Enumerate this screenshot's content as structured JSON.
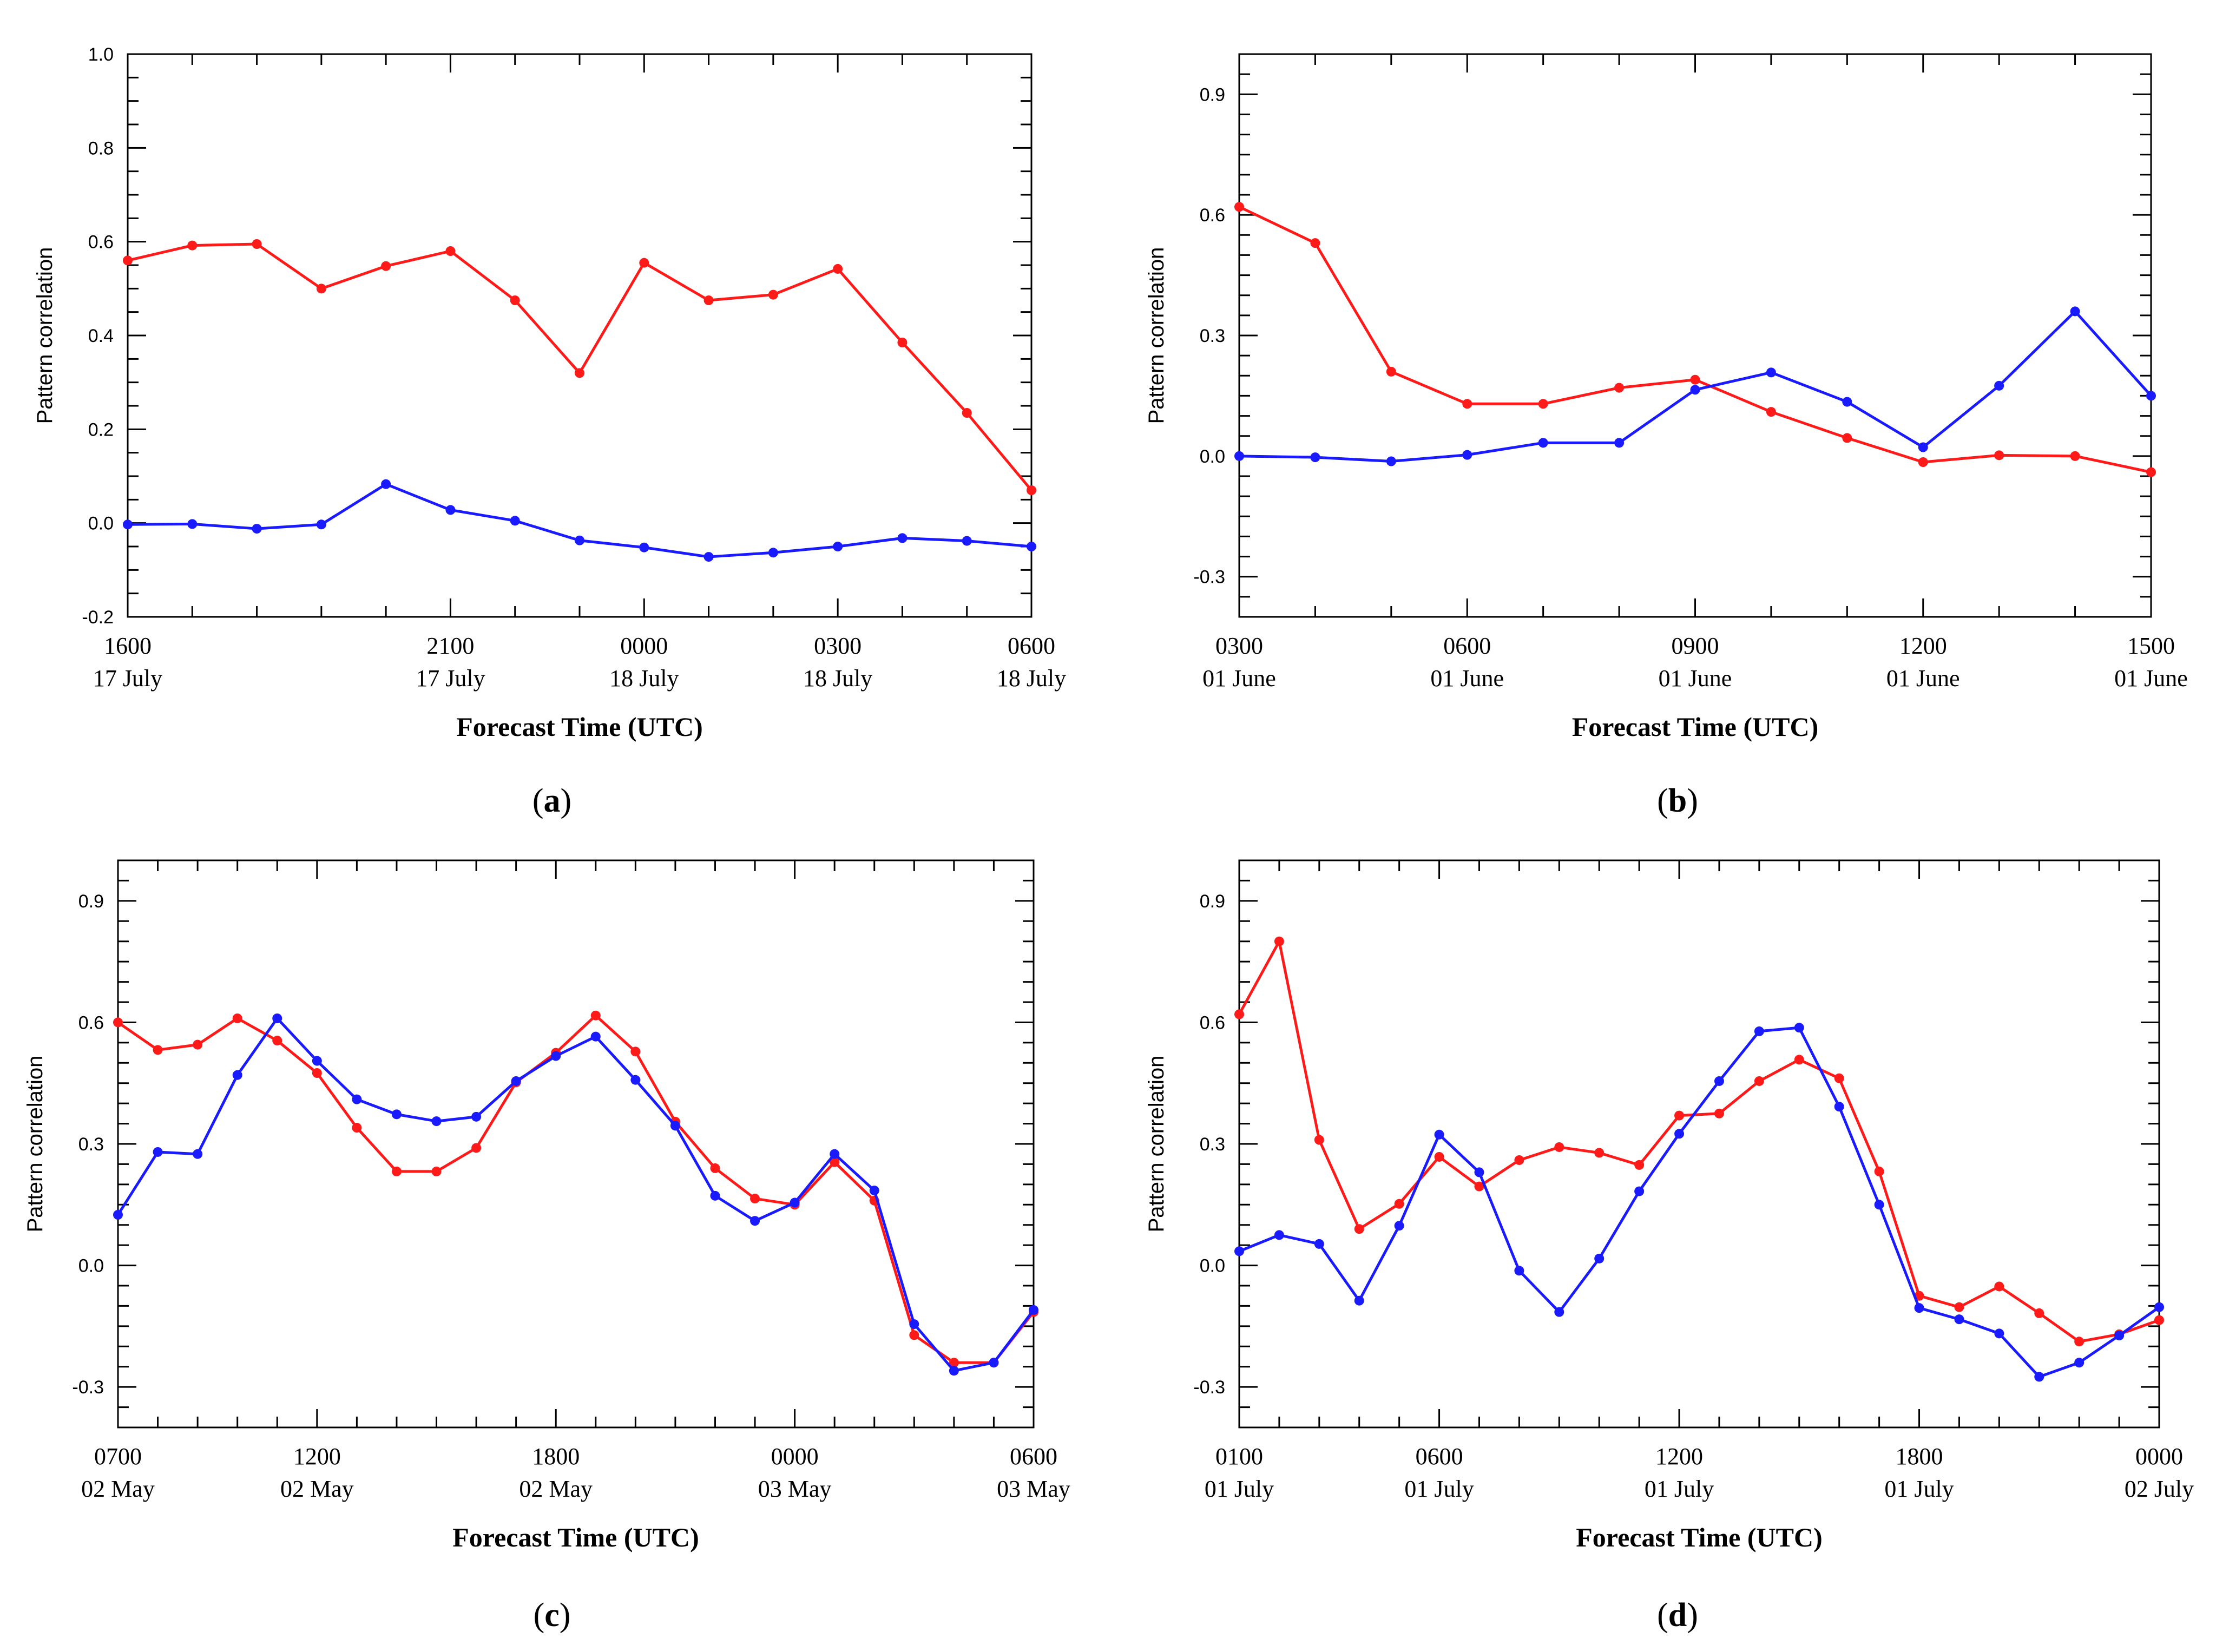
{
  "chart_data": [
    {
      "type": "line",
      "panel": "(a)",
      "panel_letter": "a",
      "ylabel": "Pattern correlation",
      "xlabel": "Forecast Time (UTC)",
      "ylim": [
        -0.2,
        1.0
      ],
      "yticks": [
        -0.2,
        0.0,
        0.2,
        0.4,
        0.6,
        0.8,
        1.0
      ],
      "ytick_labels": [
        "-0.2",
        "0.0",
        "0.2",
        "0.4",
        "0.6",
        "0.8",
        "1.0"
      ],
      "y_minor_step": 0.05,
      "xlim": [
        0,
        14
      ],
      "x_minor_step": 1,
      "xtick_labels": [
        {
          "x": 0,
          "time": "1600",
          "date": "17 July"
        },
        {
          "x": 5,
          "time": "2100",
          "date": "17 July"
        },
        {
          "x": 8,
          "time": "0000",
          "date": "18 July"
        },
        {
          "x": 11,
          "time": "0300",
          "date": "18 July"
        },
        {
          "x": 14,
          "time": "0600",
          "date": "18 July"
        }
      ],
      "series": [
        {
          "name": "red",
          "color": "#ff1a1a",
          "values": [
            0.56,
            0.592,
            0.595,
            0.5,
            0.548,
            0.58,
            0.475,
            0.32,
            0.555,
            0.475,
            0.487,
            0.542,
            0.385,
            0.235,
            0.07
          ]
        },
        {
          "name": "blue",
          "color": "#1a1aff",
          "values": [
            -0.003,
            -0.002,
            -0.012,
            -0.003,
            0.083,
            0.028,
            0.005,
            -0.037,
            -0.052,
            -0.072,
            -0.063,
            -0.05,
            -0.032,
            -0.038,
            -0.05
          ]
        }
      ]
    },
    {
      "type": "line",
      "panel": "(b)",
      "panel_letter": "b",
      "ylabel": "Pattern correlation",
      "xlabel": "Forecast Time (UTC)",
      "ylim": [
        -0.4,
        1.0
      ],
      "yticks": [
        -0.3,
        0.0,
        0.3,
        0.6,
        0.9
      ],
      "ytick_labels": [
        "-0.3",
        "0.0",
        "0.3",
        "0.6",
        "0.9"
      ],
      "y_minor_step": 0.05,
      "xlim": [
        0,
        12
      ],
      "x_minor_step": 1,
      "xtick_labels": [
        {
          "x": 0,
          "time": "0300",
          "date": "01 June"
        },
        {
          "x": 3,
          "time": "0600",
          "date": "01 June"
        },
        {
          "x": 6,
          "time": "0900",
          "date": "01 June"
        },
        {
          "x": 9,
          "time": "1200",
          "date": "01 June"
        },
        {
          "x": 12,
          "time": "1500",
          "date": "01 June"
        }
      ],
      "series": [
        {
          "name": "red",
          "color": "#ff1a1a",
          "values": [
            0.62,
            0.53,
            0.21,
            0.13,
            0.13,
            0.17,
            0.19,
            0.11,
            0.045,
            -0.015,
            0.002,
            0.0,
            -0.04
          ]
        },
        {
          "name": "blue",
          "color": "#1a1aff",
          "values": [
            0.0,
            -0.003,
            -0.013,
            0.003,
            0.033,
            0.033,
            0.165,
            0.208,
            0.135,
            0.022,
            0.175,
            0.36,
            0.15
          ]
        }
      ]
    },
    {
      "type": "line",
      "panel": "(c)",
      "panel_letter": "c",
      "ylabel": "Pattern correlation",
      "xlabel": "Forecast Time (UTC)",
      "ylim": [
        -0.4,
        1.0
      ],
      "yticks": [
        -0.3,
        0.0,
        0.3,
        0.6,
        0.9
      ],
      "ytick_labels": [
        "-0.3",
        "0.0",
        "0.3",
        "0.6",
        "0.9"
      ],
      "y_minor_step": 0.05,
      "xlim": [
        0,
        46
      ],
      "x_minor_step": 2,
      "xtick_labels": [
        {
          "x": 0,
          "time": "0700",
          "date": "02 May"
        },
        {
          "x": 10,
          "time": "1200",
          "date": "02 May"
        },
        {
          "x": 22,
          "time": "1800",
          "date": "02 May"
        },
        {
          "x": 34,
          "time": "0000",
          "date": "03 May"
        },
        {
          "x": 46,
          "time": "0600",
          "date": "03 May"
        }
      ],
      "series": [
        {
          "name": "red",
          "x": [
            0,
            2,
            4,
            6,
            8,
            10,
            12,
            14,
            16,
            18,
            20,
            22,
            24,
            26,
            28,
            30,
            32,
            34,
            36,
            38,
            40,
            42,
            44,
            46
          ],
          "color": "#ff1a1a",
          "values": [
            0.6,
            0.532,
            0.545,
            0.61,
            0.555,
            0.475,
            0.34,
            0.232,
            0.232,
            0.29,
            0.452,
            0.525,
            0.617,
            0.528,
            0.355,
            0.24,
            0.165,
            0.15,
            0.255,
            0.16,
            -0.172,
            -0.24,
            -0.24,
            -0.115
          ]
        },
        {
          "name": "blue",
          "x": [
            0,
            2,
            4,
            6,
            8,
            10,
            12,
            14,
            16,
            18,
            20,
            22,
            24,
            26,
            28,
            30,
            32,
            34,
            36,
            38,
            40,
            42,
            44,
            46
          ],
          "color": "#1a1aff",
          "values": [
            0.125,
            0.28,
            0.275,
            0.47,
            0.61,
            0.505,
            0.41,
            0.373,
            0.356,
            0.367,
            0.455,
            0.517,
            0.565,
            0.458,
            0.345,
            0.172,
            0.11,
            0.155,
            0.275,
            0.185,
            -0.145,
            -0.26,
            -0.24,
            -0.11
          ]
        }
      ]
    },
    {
      "type": "line",
      "panel": "(d)",
      "panel_letter": "d",
      "ylabel": "Pattern correlation",
      "xlabel": "Forecast Time (UTC)",
      "ylim": [
        -0.4,
        1.0
      ],
      "yticks": [
        -0.3,
        0.0,
        0.3,
        0.6,
        0.9
      ],
      "ytick_labels": [
        "-0.3",
        "0.0",
        "0.3",
        "0.6",
        "0.9"
      ],
      "y_minor_step": 0.05,
      "xlim": [
        0,
        23
      ],
      "x_minor_step": 1,
      "xtick_labels": [
        {
          "x": 0,
          "time": "0100",
          "date": "01 July"
        },
        {
          "x": 5,
          "time": "0600",
          "date": "01 July"
        },
        {
          "x": 11,
          "time": "1200",
          "date": "01 July"
        },
        {
          "x": 17,
          "time": "1800",
          "date": "01 July"
        },
        {
          "x": 23,
          "time": "0000",
          "date": "02 July"
        }
      ],
      "series": [
        {
          "name": "red",
          "color": "#ff1a1a",
          "values": [
            0.62,
            0.8,
            0.31,
            0.09,
            0.152,
            0.268,
            0.195,
            0.26,
            0.292,
            0.278,
            0.248,
            0.37,
            0.375,
            0.455,
            0.508,
            0.462,
            0.232,
            -0.075,
            -0.103,
            -0.052,
            -0.118,
            -0.188,
            -0.17,
            -0.135
          ]
        },
        {
          "name": "blue",
          "color": "#1a1aff",
          "values": [
            0.035,
            0.075,
            0.053,
            -0.087,
            0.098,
            0.323,
            0.23,
            -0.013,
            -0.115,
            0.017,
            0.183,
            0.325,
            0.455,
            0.578,
            0.587,
            0.392,
            0.15,
            -0.105,
            -0.133,
            -0.168,
            -0.275,
            -0.24,
            -0.173,
            -0.103
          ]
        }
      ]
    }
  ]
}
